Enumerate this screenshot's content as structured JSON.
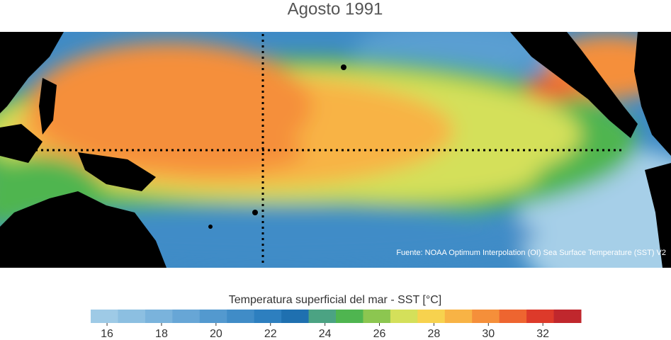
{
  "title": "Agosto 1991",
  "source": "Fuente: NOAA Optimum Interpolation (OI) Sea Surface Temperature (SST) V2",
  "colorbar": {
    "label": "Temperatura superficial del mar - SST  [°C]",
    "lim": [
      15.4,
      33.4
    ],
    "ticks": [
      16,
      18,
      20,
      22,
      24,
      26,
      28,
      30,
      32
    ],
    "colors": [
      "#9ecae6",
      "#8cbfe1",
      "#7ab3dc",
      "#67a6d6",
      "#5399cf",
      "#408cc7",
      "#2d7fbf",
      "#1f70b0",
      "#4ba383",
      "#4fb550",
      "#8cc650",
      "#d4e05a",
      "#f7d24e",
      "#f8b345",
      "#f58f3a",
      "#ee6530",
      "#dd3a2a",
      "#c0272d"
    ]
  }
}
